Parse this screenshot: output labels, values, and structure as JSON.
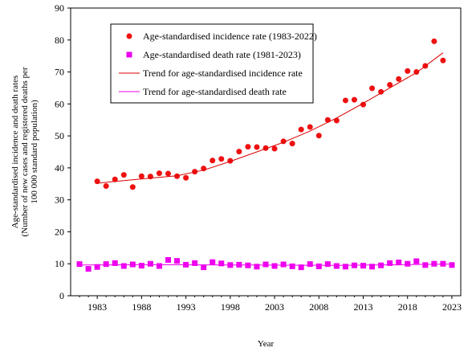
{
  "chart_data": {
    "type": "scatter",
    "title": "",
    "xlabel": "Year",
    "ylabel_lines": [
      "Age-standardised incidence and death rates",
      "(Number of new cases and registered deaths per",
      "100 000 standard population)"
    ],
    "xlim": [
      1980,
      2024
    ],
    "ylim": [
      0,
      90
    ],
    "x_ticks": [
      1983,
      1988,
      1993,
      1998,
      2003,
      2008,
      2013,
      2018,
      2023
    ],
    "y_ticks": [
      0,
      10,
      20,
      30,
      40,
      50,
      60,
      70,
      80,
      90
    ],
    "grid": false,
    "legend_position": "top-left",
    "series": [
      {
        "name": "Age-standardised incidence rate (1983-2022)",
        "kind": "points",
        "marker": "circle",
        "color": "#ee1111",
        "x": [
          1983,
          1984,
          1985,
          1986,
          1987,
          1988,
          1989,
          1990,
          1991,
          1992,
          1993,
          1994,
          1995,
          1996,
          1997,
          1998,
          1999,
          2000,
          2001,
          2002,
          2003,
          2004,
          2005,
          2006,
          2007,
          2008,
          2009,
          2010,
          2011,
          2012,
          2013,
          2014,
          2015,
          2016,
          2017,
          2018,
          2019,
          2020,
          2021,
          2022
        ],
        "y": [
          35.8,
          34.3,
          36.4,
          37.8,
          34.0,
          37.4,
          37.3,
          38.3,
          38.2,
          37.4,
          36.9,
          38.8,
          39.8,
          42.3,
          42.8,
          42.2,
          45.1,
          46.6,
          46.5,
          46.2,
          46.0,
          48.3,
          47.6,
          52.0,
          52.8,
          50.1,
          55.0,
          54.8,
          61.1,
          61.3,
          59.8,
          64.9,
          63.8,
          66.0,
          67.8,
          70.3,
          70.0,
          71.9,
          79.6,
          73.6
        ]
      },
      {
        "name": "Age-standardised death rate (1981-2023)",
        "kind": "points",
        "marker": "square",
        "color": "#ee00ee",
        "x": [
          1981,
          1982,
          1983,
          1984,
          1985,
          1986,
          1987,
          1988,
          1989,
          1990,
          1991,
          1992,
          1993,
          1994,
          1995,
          1996,
          1997,
          1998,
          1999,
          2000,
          2001,
          2002,
          2003,
          2004,
          2005,
          2006,
          2007,
          2008,
          2009,
          2010,
          2011,
          2012,
          2013,
          2014,
          2015,
          2016,
          2017,
          2018,
          2019,
          2020,
          2021,
          2022,
          2023
        ],
        "y": [
          9.9,
          8.4,
          9.0,
          9.9,
          10.2,
          9.3,
          9.8,
          9.4,
          10.0,
          9.3,
          11.2,
          10.9,
          9.7,
          10.2,
          8.9,
          10.5,
          10.1,
          9.6,
          9.7,
          9.5,
          9.1,
          9.8,
          9.3,
          9.8,
          9.2,
          8.9,
          9.9,
          9.2,
          9.9,
          9.3,
          9.1,
          9.5,
          9.4,
          9.1,
          9.5,
          10.2,
          10.4,
          10.0,
          10.8,
          9.6,
          10.0,
          10.0,
          9.6
        ]
      },
      {
        "name": "Trend for age-standardised incidence rate",
        "kind": "line",
        "color": "#dd0000",
        "x": [
          1983,
          1986,
          1989,
          1992,
          1995,
          1998,
          2001,
          2004,
          2007,
          2010,
          2013,
          2016,
          2019,
          2022
        ],
        "y": [
          35.2,
          36.0,
          36.8,
          37.5,
          39.3,
          42.0,
          45.0,
          48.0,
          51.5,
          55.6,
          60.2,
          65.0,
          69.8,
          76.0
        ]
      },
      {
        "name": "Trend for age-standardised death rate",
        "kind": "line",
        "color": "#ee00ee",
        "x": [
          1981,
          1990,
          2000,
          2010,
          2023
        ],
        "y": [
          9.6,
          9.7,
          9.6,
          9.5,
          9.9
        ]
      }
    ]
  }
}
